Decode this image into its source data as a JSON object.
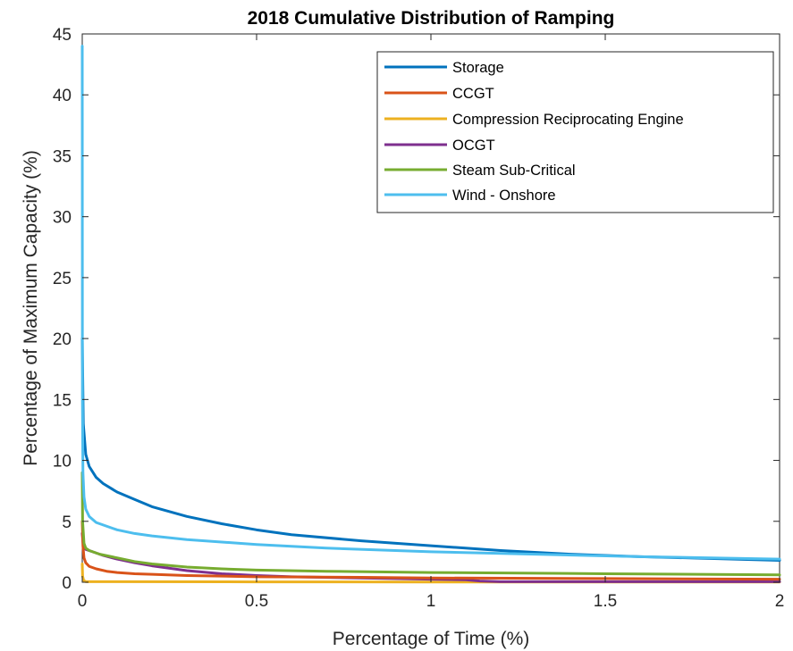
{
  "chart_data": {
    "type": "line",
    "title": "2018 Cumulative Distribution of Ramping",
    "xlabel": "Percentage of Time (%)",
    "ylabel": "Percentage of Maximum Capacity (%)",
    "xlim": [
      0,
      2
    ],
    "ylim": [
      0,
      45
    ],
    "xticks": [
      0,
      0.5,
      1,
      1.5,
      2
    ],
    "xtick_labels": [
      "0",
      "0.5",
      "1",
      "1.5",
      "2"
    ],
    "yticks": [
      0,
      5,
      10,
      15,
      20,
      25,
      30,
      35,
      40,
      45
    ],
    "ytick_labels": [
      "0",
      "5",
      "10",
      "15",
      "20",
      "25",
      "30",
      "35",
      "40",
      "45"
    ],
    "grid": false,
    "legend_position": "top-right",
    "series": [
      {
        "name": "Storage",
        "color": "#0072BD",
        "x": [
          0,
          0.003,
          0.01,
          0.02,
          0.04,
          0.06,
          0.1,
          0.15,
          0.2,
          0.3,
          0.4,
          0.5,
          0.6,
          0.8,
          1.0,
          1.2,
          1.4,
          1.6,
          1.8,
          2.0
        ],
        "y": [
          20,
          13,
          10.5,
          9.5,
          8.6,
          8.1,
          7.4,
          6.8,
          6.2,
          5.4,
          4.8,
          4.3,
          3.9,
          3.4,
          3.0,
          2.6,
          2.3,
          2.1,
          1.95,
          1.8
        ]
      },
      {
        "name": "CCGT",
        "color": "#D95319",
        "x": [
          0,
          0.002,
          0.005,
          0.01,
          0.02,
          0.04,
          0.07,
          0.1,
          0.15,
          0.2,
          0.3,
          0.5,
          0.8,
          1.0,
          1.5,
          2.0
        ],
        "y": [
          5,
          3,
          2,
          1.6,
          1.3,
          1.1,
          0.9,
          0.8,
          0.7,
          0.65,
          0.55,
          0.45,
          0.4,
          0.35,
          0.3,
          0.25
        ]
      },
      {
        "name": "Compression Reciprocating Engine",
        "color": "#EDB120",
        "x": [
          0,
          0.001,
          0.004,
          0.01,
          0.5,
          1.0,
          1.5,
          2.0
        ],
        "y": [
          1.5,
          0.5,
          0.15,
          0.05,
          0.03,
          0.02,
          0.02,
          0.02
        ]
      },
      {
        "name": "OCGT",
        "color": "#7E2F8E",
        "x": [
          0,
          0.003,
          0.01,
          0.03,
          0.06,
          0.1,
          0.15,
          0.2,
          0.3,
          0.4,
          0.5,
          0.6,
          0.8,
          1.0,
          1.1,
          1.14,
          1.2,
          1.5,
          2.0
        ],
        "y": [
          4,
          3,
          2.7,
          2.5,
          2.2,
          1.9,
          1.6,
          1.35,
          0.95,
          0.7,
          0.55,
          0.45,
          0.35,
          0.25,
          0.2,
          0.1,
          0.05,
          0.05,
          0.05
        ]
      },
      {
        "name": "Steam Sub-Critical",
        "color": "#77AC30",
        "x": [
          0,
          0.001,
          0.005,
          0.01,
          0.02,
          0.05,
          0.1,
          0.15,
          0.2,
          0.3,
          0.4,
          0.5,
          0.7,
          1.0,
          1.5,
          2.0
        ],
        "y": [
          9,
          5,
          3.2,
          2.8,
          2.6,
          2.3,
          2.0,
          1.7,
          1.5,
          1.25,
          1.1,
          1.0,
          0.9,
          0.8,
          0.7,
          0.6
        ]
      },
      {
        "name": "Wind - Onshore",
        "color": "#4DBEEE",
        "x": [
          0,
          0.0005,
          0.002,
          0.005,
          0.01,
          0.02,
          0.04,
          0.07,
          0.1,
          0.15,
          0.2,
          0.3,
          0.5,
          0.7,
          1.0,
          1.3,
          1.6,
          2.0
        ],
        "y": [
          44,
          15,
          9,
          7,
          6,
          5.4,
          4.9,
          4.6,
          4.3,
          4.0,
          3.8,
          3.5,
          3.1,
          2.8,
          2.5,
          2.3,
          2.1,
          1.9
        ]
      }
    ]
  }
}
